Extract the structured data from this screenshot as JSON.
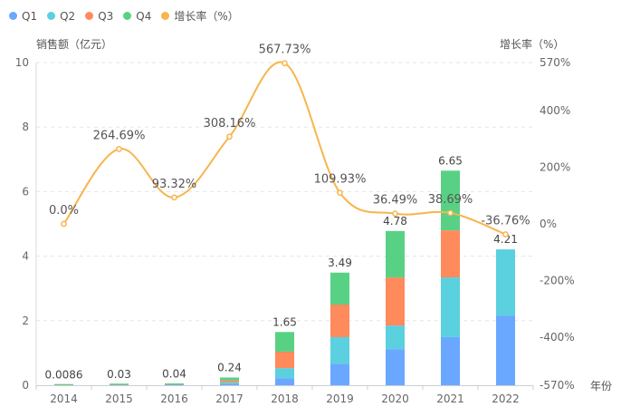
{
  "chart_data": {
    "type": "bar+line",
    "categories": [
      "2014",
      "2015",
      "2016",
      "2017",
      "2018",
      "2019",
      "2020",
      "2021",
      "2022"
    ],
    "series": [
      {
        "name": "Q1",
        "type": "bar",
        "stack": "sales",
        "color": "#6aa8ff",
        "values": [
          0.002,
          0.007,
          0.01,
          0.04,
          0.22,
          0.67,
          1.12,
          1.49,
          2.16
        ]
      },
      {
        "name": "Q2",
        "type": "bar",
        "stack": "sales",
        "color": "#5bd0df",
        "values": [
          0.002,
          0.008,
          0.01,
          0.05,
          0.31,
          0.82,
          0.73,
          1.85,
          2.05
        ]
      },
      {
        "name": "Q3",
        "type": "bar",
        "stack": "sales",
        "color": "#ff8a5c",
        "values": [
          0.002,
          0.007,
          0.01,
          0.06,
          0.51,
          1.01,
          1.49,
          1.46,
          0
        ]
      },
      {
        "name": "Q4",
        "type": "bar",
        "stack": "sales",
        "color": "#59d184",
        "values": [
          0.0026,
          0.008,
          0.01,
          0.09,
          0.61,
          0.99,
          1.44,
          1.85,
          0
        ]
      },
      {
        "name": "增长率（%）",
        "type": "line",
        "axis": "right",
        "color": "#f7b54d",
        "values": [
          0.0,
          264.69,
          93.32,
          308.16,
          567.73,
          109.93,
          36.49,
          38.69,
          -36.76
        ]
      }
    ],
    "totals": [
      0.0086,
      0.03,
      0.04,
      0.24,
      1.65,
      3.49,
      4.78,
      6.65,
      4.21
    ],
    "total_labels": [
      "0.0086",
      "0.03",
      "0.04",
      "0.24",
      "1.65",
      "3.49",
      "4.78",
      "6.65",
      "4.21"
    ],
    "growth_labels": [
      "0.0%",
      "264.69%",
      "93.32%",
      "308.16%",
      "567.73%",
      "109.93%",
      "36.49%",
      "38.69%",
      "-36.76%"
    ],
    "xlabel": "年份",
    "ylabel": "销售额（亿元）",
    "ylabel_right": "增长率（%）",
    "ylim": [
      0,
      10
    ],
    "yticks": [
      "0",
      "2",
      "4",
      "6",
      "8",
      "10"
    ],
    "ylim_right": [
      -570,
      570
    ],
    "yticks_right": [
      "-570%",
      "-400%",
      "-200%",
      "0%",
      "200%",
      "400%",
      "570%"
    ],
    "yticks_right_values": [
      -570,
      -400,
      -200,
      0,
      200,
      400,
      570
    ],
    "grid": true,
    "legend": "top-left"
  },
  "legend": [
    {
      "label": "Q1",
      "color": "#6aa8ff"
    },
    {
      "label": "Q2",
      "color": "#5bd0df"
    },
    {
      "label": "Q3",
      "color": "#ff8a5c"
    },
    {
      "label": "Q4",
      "color": "#59d184"
    },
    {
      "label": "增长率（%）",
      "color": "#f7b54d"
    }
  ]
}
